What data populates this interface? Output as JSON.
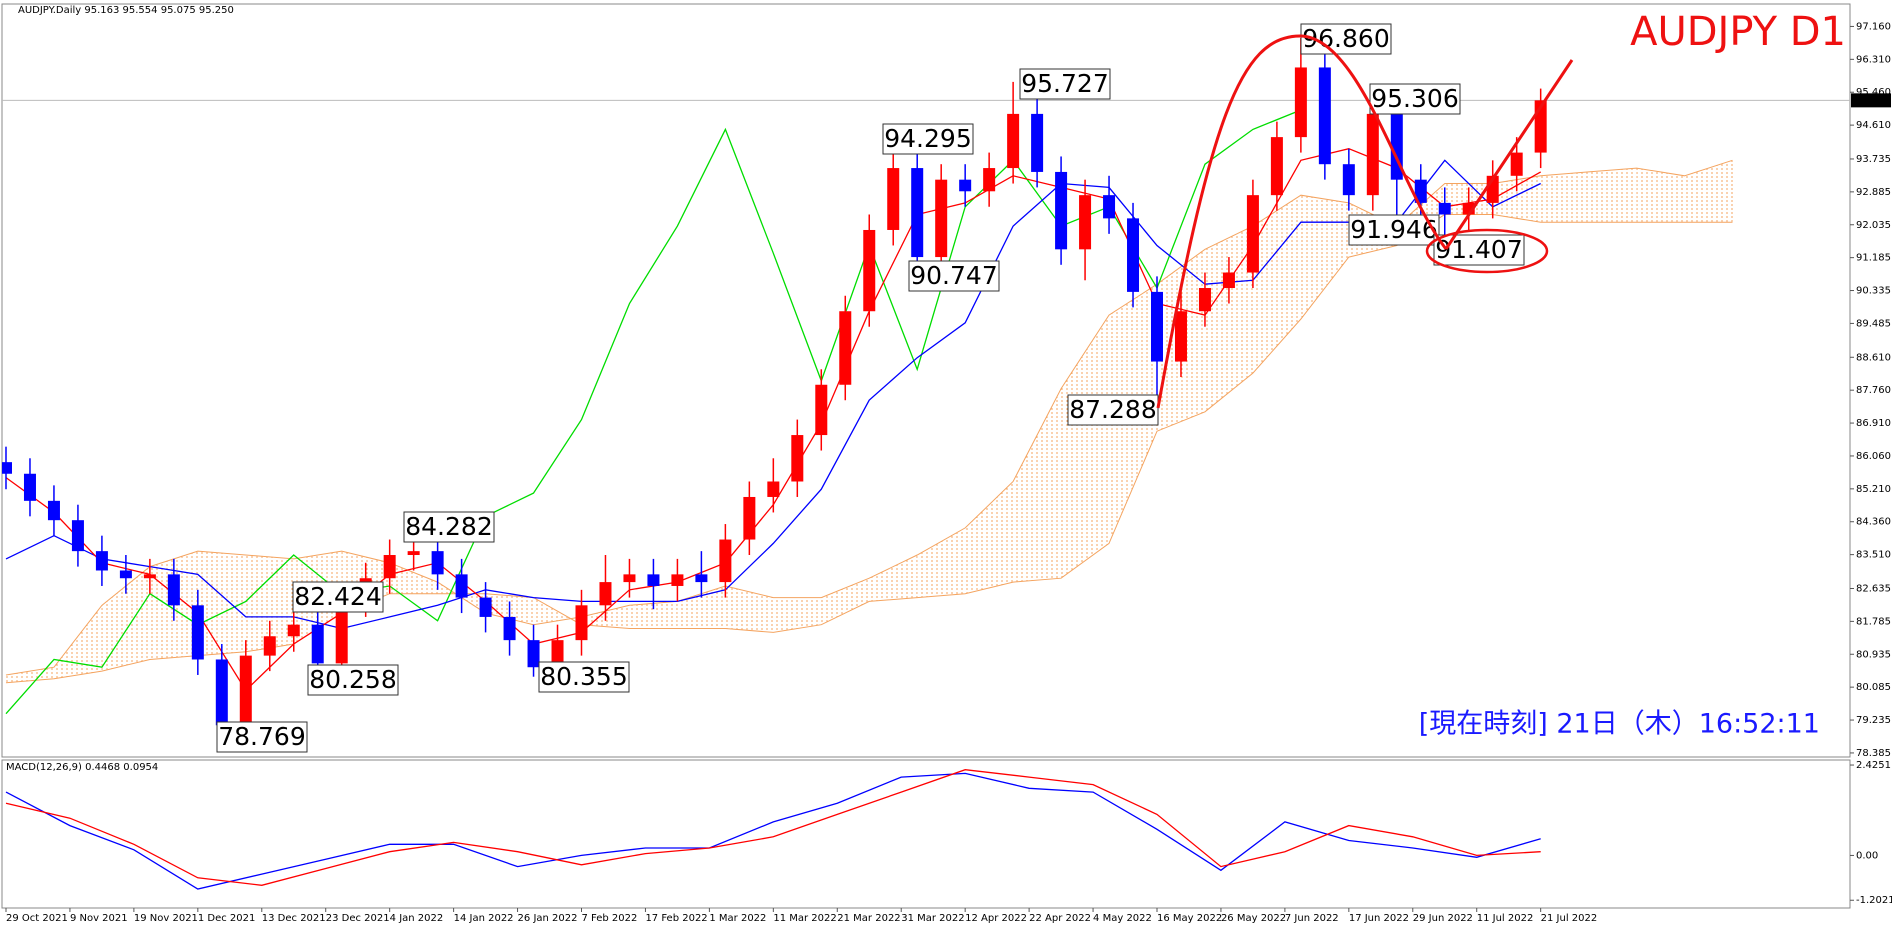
{
  "chart_data": [
    {
      "type": "candlestick",
      "title": "AUDJPY D1",
      "header": "AUDJPY.Daily  95.163 95.554 95.075 95.250",
      "clock": "[現在時刻] 21日（木）16:52:11",
      "x": [
        0,
        3,
        6,
        9,
        12,
        15,
        18,
        21,
        24,
        27,
        30,
        33,
        36,
        39,
        42,
        45,
        48,
        51,
        54,
        57,
        60,
        63,
        66,
        69,
        72,
        75,
        78,
        81,
        84,
        87,
        90,
        93,
        96,
        99,
        102,
        105,
        108,
        111,
        114,
        117,
        120,
        123,
        126,
        129,
        132,
        135,
        138,
        141,
        144,
        147,
        150,
        153,
        156,
        159,
        162,
        165,
        168,
        171,
        174,
        177,
        180,
        183,
        186,
        189,
        192
      ],
      "open": [
        85.9,
        85.6,
        84.9,
        84.4,
        83.6,
        83.1,
        82.9,
        83.0,
        82.2,
        80.8,
        79.1,
        80.9,
        81.4,
        81.7,
        80.7,
        82.3,
        82.9,
        83.5,
        83.6,
        83.0,
        82.4,
        81.9,
        81.3,
        80.6,
        81.3,
        82.2,
        82.8,
        83.0,
        82.7,
        83.0,
        82.8,
        83.9,
        85.0,
        85.4,
        86.6,
        87.9,
        89.8,
        91.9,
        93.5,
        91.2,
        93.2,
        92.9,
        93.5,
        94.9,
        93.4,
        91.4,
        92.8,
        92.2,
        90.3,
        88.5,
        89.8,
        90.4,
        90.8,
        92.8,
        94.3,
        96.1,
        93.6,
        92.8,
        94.9,
        93.2,
        92.6,
        92.3,
        92.6,
        93.3,
        93.9
      ],
      "high": [
        86.3,
        86.0,
        85.3,
        84.8,
        84.0,
        83.5,
        83.4,
        83.4,
        82.6,
        81.2,
        81.3,
        81.8,
        82.1,
        82.1,
        82.7,
        83.3,
        83.9,
        84.282,
        84.0,
        83.4,
        82.8,
        82.3,
        81.7,
        81.7,
        82.6,
        83.5,
        83.4,
        83.4,
        83.4,
        83.6,
        84.3,
        85.4,
        86.0,
        87.0,
        88.3,
        90.2,
        92.3,
        94.295,
        93.9,
        93.6,
        93.6,
        93.9,
        95.727,
        95.3,
        93.8,
        93.2,
        93.3,
        92.6,
        90.7,
        90.4,
        90.8,
        91.2,
        93.2,
        94.7,
        96.86,
        96.5,
        94.0,
        95.306,
        95.3,
        93.6,
        93.0,
        93.0,
        93.7,
        94.3,
        95.554
      ],
      "low": [
        85.2,
        84.5,
        84.0,
        83.2,
        82.7,
        82.5,
        82.5,
        81.8,
        80.4,
        78.769,
        78.9,
        80.5,
        81.0,
        80.258,
        80.4,
        81.9,
        82.5,
        83.1,
        82.6,
        82.0,
        81.5,
        80.9,
        80.355,
        80.4,
        80.9,
        81.8,
        82.4,
        82.1,
        82.3,
        82.4,
        82.4,
        83.5,
        84.6,
        85.0,
        86.2,
        87.5,
        89.4,
        91.5,
        90.747,
        90.8,
        92.5,
        92.5,
        93.1,
        93.0,
        91.0,
        90.6,
        91.8,
        89.9,
        87.288,
        88.1,
        89.4,
        90.0,
        90.4,
        92.4,
        93.9,
        93.2,
        92.4,
        92.4,
        91.946,
        92.2,
        91.407,
        91.9,
        92.2,
        92.9,
        93.5
      ],
      "close": [
        85.6,
        84.9,
        84.4,
        83.6,
        83.1,
        82.9,
        83.0,
        82.2,
        80.8,
        79.1,
        80.9,
        81.4,
        81.7,
        80.7,
        82.3,
        82.9,
        83.5,
        83.6,
        83.0,
        82.4,
        81.9,
        81.3,
        80.6,
        81.3,
        82.2,
        82.8,
        83.0,
        82.7,
        83.0,
        82.8,
        83.9,
        85.0,
        85.4,
        86.6,
        87.9,
        89.8,
        91.9,
        93.5,
        91.2,
        93.2,
        92.9,
        93.5,
        94.9,
        93.4,
        91.4,
        92.8,
        92.2,
        90.3,
        88.5,
        89.8,
        90.4,
        90.8,
        92.8,
        94.3,
        96.1,
        93.6,
        92.8,
        94.9,
        93.2,
        92.6,
        92.3,
        92.6,
        93.3,
        93.9,
        95.25
      ],
      "up_color": "#ff0000",
      "down_color": "#0000ff",
      "overlays": [
        {
          "type": "cloud",
          "color": "#f4a460",
          "x": [
            0,
            6,
            12,
            18,
            24,
            30,
            36,
            42,
            48,
            54,
            60,
            66,
            72,
            78,
            84,
            90,
            96,
            102,
            108,
            114,
            120,
            126,
            132,
            138,
            144,
            150,
            156,
            162,
            168,
            174,
            180,
            186,
            192,
            198,
            204,
            210,
            216
          ],
          "span_a": [
            80.4,
            80.6,
            82.2,
            83.2,
            83.6,
            83.5,
            83.4,
            83.6,
            83.3,
            82.8,
            82.0,
            81.7,
            81.9,
            82.2,
            82.3,
            82.7,
            82.4,
            82.4,
            82.9,
            83.5,
            84.2,
            85.4,
            87.8,
            89.7,
            90.5,
            91.4,
            92.0,
            92.8,
            92.6,
            92.0,
            93.1,
            93.1,
            93.3,
            93.4,
            93.5,
            93.3,
            93.7
          ],
          "span_b": [
            80.2,
            80.3,
            80.5,
            80.8,
            80.9,
            81.0,
            81.2,
            82.0,
            82.5,
            82.5,
            82.5,
            82.4,
            81.7,
            81.6,
            81.6,
            81.6,
            81.5,
            81.7,
            82.3,
            82.4,
            82.5,
            82.8,
            82.9,
            83.8,
            86.7,
            87.2,
            88.2,
            89.6,
            91.2,
            91.5,
            92.3,
            92.3,
            92.1,
            92.1,
            92.1,
            92.1,
            92.1
          ]
        },
        {
          "type": "line",
          "color": "#00dd00",
          "x": [
            0,
            6,
            12,
            18,
            24,
            30,
            36,
            42,
            48,
            54,
            60,
            66,
            72,
            78,
            84,
            90,
            96,
            102,
            108,
            114,
            120,
            126,
            132,
            138,
            144,
            150,
            156,
            162
          ],
          "values": [
            79.4,
            80.8,
            80.6,
            82.5,
            81.7,
            82.3,
            83.5,
            82.5,
            82.7,
            81.8,
            84.5,
            85.1,
            87.0,
            90.0,
            92.0,
            94.5,
            91.3,
            88.0,
            91.5,
            88.3,
            92.5,
            93.7,
            92.0,
            92.5,
            90.4,
            93.6,
            94.5,
            95.0
          ]
        },
        {
          "type": "line",
          "color": "#0000ff",
          "x": [
            0,
            6,
            12,
            18,
            24,
            30,
            36,
            42,
            48,
            54,
            60,
            66,
            72,
            78,
            84,
            90,
            96,
            102,
            108,
            114,
            120,
            126,
            132,
            138,
            144,
            150,
            156,
            162,
            168,
            174,
            180,
            186,
            192
          ],
          "values": [
            83.4,
            84.0,
            83.4,
            83.2,
            83.0,
            81.9,
            81.9,
            81.6,
            81.9,
            82.2,
            82.6,
            82.4,
            82.3,
            82.3,
            82.3,
            82.6,
            83.8,
            85.2,
            87.5,
            88.6,
            89.5,
            92.0,
            93.1,
            93.0,
            91.5,
            90.5,
            90.6,
            92.1,
            92.1,
            92.1,
            93.7,
            92.5,
            93.1
          ]
        },
        {
          "type": "line",
          "color": "#ff0000",
          "x": [
            0,
            6,
            12,
            18,
            24,
            30,
            36,
            42,
            48,
            54,
            60,
            66,
            72,
            78,
            84,
            90,
            96,
            102,
            108,
            114,
            120,
            126,
            132,
            138,
            144,
            150,
            156,
            162,
            168,
            174,
            180,
            186,
            192
          ],
          "values": [
            85.5,
            84.6,
            83.3,
            83.0,
            82.0,
            80.0,
            81.2,
            82.0,
            83.0,
            83.3,
            82.3,
            81.2,
            81.5,
            82.6,
            82.8,
            83.3,
            84.8,
            86.9,
            89.8,
            92.3,
            92.6,
            93.3,
            93.0,
            92.7,
            90.0,
            89.7,
            91.5,
            93.7,
            94.0,
            93.5,
            92.5,
            92.7,
            93.4
          ]
        }
      ],
      "annotations": [
        {
          "value": 96.86,
          "label": "96.860"
        },
        95.306,
        95.727,
        94.295,
        90.747,
        84.282,
        82.424,
        80.258,
        80.355,
        78.769,
        87.288,
        91.946,
        91.407
      ],
      "current_price": {
        "value": 95.25,
        "label": "95.250"
      },
      "xlim": [
        -0.5,
        230.7
      ],
      "ylim": [
        78.28,
        97.74
      ],
      "yticks": [
        {
          "value": 97.16,
          "label": "97.160"
        },
        {
          "value": 96.31,
          "label": "96.310"
        },
        {
          "value": 95.46,
          "label": "95.460"
        },
        {
          "value": 94.61,
          "label": "94.610"
        },
        93.735,
        92.885,
        92.035,
        91.185,
        90.335,
        89.485,
        {
          "value": 88.61,
          "label": "88.610"
        },
        {
          "value": 87.76,
          "label": "87.760"
        },
        {
          "value": 86.91,
          "label": "86.910"
        },
        {
          "value": 86.06,
          "label": "86.060"
        },
        {
          "value": 85.21,
          "label": "85.210"
        },
        {
          "value": 84.36,
          "label": "84.360"
        },
        {
          "value": 83.51,
          "label": "83.510"
        },
        82.635,
        81.785,
        80.935,
        80.085,
        79.235,
        78.385
      ],
      "xticks": [
        {
          "value": 0,
          "label": "29 Oct 2021"
        },
        {
          "value": 8,
          "label": "9 Nov 2021"
        },
        {
          "value": 16,
          "label": "19 Nov 2021"
        },
        {
          "value": 24,
          "label": "1 Dec 2021"
        },
        {
          "value": 32,
          "label": "13 Dec 2021"
        },
        {
          "value": 40,
          "label": "23 Dec 2021"
        },
        {
          "value": 48,
          "label": "4 Jan 2022"
        },
        {
          "value": 56,
          "label": "14 Jan 2022"
        },
        {
          "value": 64,
          "label": "26 Jan 2022"
        },
        {
          "value": 72,
          "label": "7 Feb 2022"
        },
        {
          "value": 80,
          "label": "17 Feb 2022"
        },
        {
          "value": 88,
          "label": "1 Mar 2022"
        },
        {
          "value": 96,
          "label": "11 Mar 2022"
        },
        {
          "value": 104,
          "label": "21 Mar 2022"
        },
        {
          "value": 112,
          "label": "31 Mar 2022"
        },
        {
          "value": 120,
          "label": "12 Apr 2022"
        },
        {
          "value": 128,
          "label": "22 Apr 2022"
        },
        {
          "value": 136,
          "label": "4 May 2022"
        },
        {
          "value": 144,
          "label": "16 May 2022"
        },
        {
          "value": 152,
          "label": "26 May 2022"
        },
        {
          "value": 160,
          "label": "7 Jun 2022"
        },
        {
          "value": 168,
          "label": "17 Jun 2022"
        },
        {
          "value": 176,
          "label": "29 Jun 2022"
        },
        {
          "value": 184,
          "label": "11 Jul 2022"
        },
        {
          "value": 192,
          "label": "21 Jul 2022"
        }
      ]
    },
    {
      "type": "line",
      "title": "MACD(12,26,9) 0.4468 0.0954",
      "x": [
        0,
        8,
        16,
        24,
        32,
        40,
        48,
        56,
        64,
        72,
        80,
        88,
        96,
        104,
        112,
        120,
        128,
        136,
        144,
        152,
        160,
        168,
        176,
        184,
        192
      ],
      "series": [
        {
          "color": "#0000ff",
          "values": [
            1.7,
            0.8,
            0.15,
            -0.9,
            -0.5,
            -0.1,
            0.3,
            0.3,
            -0.3,
            0.0,
            0.2,
            0.2,
            0.9,
            1.4,
            2.1,
            2.2,
            1.8,
            1.7,
            0.7,
            -0.4,
            0.9,
            0.4,
            0.2,
            -0.05,
            0.45
          ]
        },
        {
          "color": "#ff0000",
          "values": [
            1.4,
            1.0,
            0.3,
            -0.6,
            -0.8,
            -0.35,
            0.1,
            0.35,
            0.1,
            -0.25,
            0.05,
            0.2,
            0.5,
            1.1,
            1.7,
            2.3,
            2.1,
            1.9,
            1.1,
            -0.3,
            0.1,
            0.8,
            0.5,
            0.0,
            0.1
          ]
        }
      ],
      "xlim": [
        -0.5,
        230.7
      ],
      "ylim": [
        -1.41,
        2.56
      ],
      "yticks": [
        2.4251,
        {
          "value": 0,
          "label": "0.00"
        },
        -1.2021
      ]
    }
  ]
}
